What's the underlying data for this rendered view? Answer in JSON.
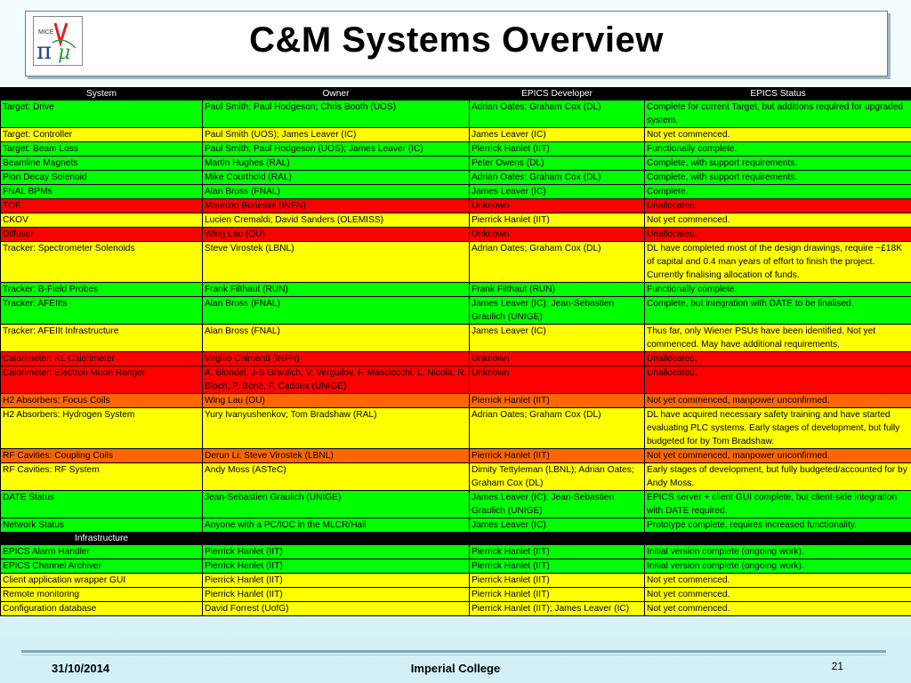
{
  "slide": {
    "title": "C&M Systems Overview",
    "logo_text": "MICE",
    "footer": {
      "date": "31/10/2014",
      "institution": "Imperial College",
      "page": "21"
    }
  },
  "colors": {
    "complete": "#00ff00",
    "partial": "#ffff00",
    "unallocated": "#ff0000",
    "unconfirmed": "#ff6600"
  },
  "table": {
    "headers": [
      "System",
      "Owner",
      "EPICS Developer",
      "EPICS Status"
    ],
    "rows": [
      {
        "status": "g",
        "cells": [
          "Target: Drive",
          "Paul Smith; Paul Hodgeson; Chris Booth (UOS)",
          "Adrian Oates; Graham Cox (DL)",
          "Complete for current Target, but additions required for upgraded system."
        ]
      },
      {
        "status": "y",
        "cells": [
          "Target: Controller",
          "Paul Smith (UOS); James Leaver (IC)",
          "James Leaver (IC)",
          "Not yet commenced."
        ]
      },
      {
        "status": "g",
        "cells": [
          "Target: Beam Loss",
          "Paul Smith; Paul Hodgeson (UOS); James Leaver (IC)",
          "Pierrick Hanlet (IIT)",
          "Functionally complete."
        ]
      },
      {
        "status": "g",
        "cells": [
          "Beamline Magnets",
          "Martin Hughes (RAL)",
          "Peter Owens (DL)",
          "Complete, with support requirements."
        ]
      },
      {
        "status": "g",
        "cells": [
          "Pion Decay Solenoid",
          "Mike Courthold (RAL)",
          "Adrian Oates; Graham Cox (DL)",
          "Complete, with support requirements."
        ]
      },
      {
        "status": "g",
        "cells": [
          "FNAL BPMs",
          "Alan Bross (FNAL)",
          "James Leaver (IC)",
          "Complete."
        ]
      },
      {
        "status": "r",
        "cells": [
          "TOF",
          "Maurizio Bonesini (INFN)",
          "Unknown",
          "Unallocated."
        ]
      },
      {
        "status": "y",
        "cells": [
          "CKOV",
          "Lucien Cremaldi; David Sanders (OLEMISS)",
          "Pierrick Hanlet (IIT)",
          "Not yet commenced."
        ]
      },
      {
        "status": "r",
        "cells": [
          "Diffuser",
          "Wing Lau (OU)",
          "Unknown",
          "Unallocated."
        ]
      },
      {
        "status": "y",
        "cells": [
          "Tracker: Spectrometer Solenoids",
          "Steve Virostek (LBNL)",
          "Adrian Oates; Graham Cox (DL)",
          "DL have completed most of the design drawings, require ~£18K of capital and 0.4 man years of effort to finish the project. Currently finalising allocation of funds."
        ]
      },
      {
        "status": "g",
        "cells": [
          "Tracker: B-Field Probes",
          "Frank Filthaut (RUN)",
          "Frank Filthaut (RUN)",
          "Functionally complete."
        ]
      },
      {
        "status": "g",
        "cells": [
          "Tracker: AFEIIts",
          "Alan Bross (FNAL)",
          "James Leaver (IC); Jean-Sebastien Graulich (UNIGE)",
          "Complete, but integration with DATE to be finalised."
        ]
      },
      {
        "status": "y",
        "cells": [
          "Tracker: AFEIIt Infrastructure",
          "Alan Bross (FNAL)",
          "James Leaver (IC)",
          "Thus far, only Wiener PSUs have been identified. Not yet commenced. May have additional requirements."
        ]
      },
      {
        "status": "r",
        "cells": [
          "Calorimeter: KL Calorimeter",
          "Virgilio Chimenti (INFN)",
          "Unknown",
          "Unallocated."
        ]
      },
      {
        "status": "r",
        "cells": [
          "Calorimeter: Electron Muon Ranger",
          "A. Blondel, J-S Graulich, V. Verguilov, F. Masciocchi, L. Nicola, R. Bloch, P. Béné, F. Cadoux (UNIGE)",
          "Unknown",
          "Unallocated."
        ]
      },
      {
        "status": "o",
        "cells": [
          "H2 Absorbers: Focus Coils",
          "Wing Lau (OU)",
          "Pierrick Hanlet (IIT)",
          "Not yet commenced, manpower unconfirmed."
        ]
      },
      {
        "status": "y",
        "cells": [
          "H2 Absorbers: Hydrogen System",
          "Yury Ivanyushenkov; Tom Bradshaw (RAL)",
          "Adrian Oates; Graham Cox (DL)",
          "DL have acquired necessary safety training and have started evaluating PLC systems. Early stages of development, but fully budgeted for by Tom Bradshaw."
        ]
      },
      {
        "status": "o",
        "cells": [
          "RF Cavities: Coupling Coils",
          "Derun Li; Steve Virostek (LBNL)",
          "Pierrick Hanlet (IIT)",
          "Not yet commenced, manpower unconfirmed."
        ]
      },
      {
        "status": "y",
        "cells": [
          "RF Cavities: RF System",
          "Andy Moss (ASTeC)",
          "Dimity Tettyleman (LBNL); Adrian Oates; Graham Cox (DL)",
          "Early stages of development, but fully budgeted/accounted for by Andy Moss."
        ]
      },
      {
        "status": "g",
        "cells": [
          "DATE Status",
          "Jean-Sebastien Graulich (UNIGE)",
          "James Leaver (IC); Jean-Sebastien Graulich (UNIGE)",
          "EPICS server + client GUI complete, but client-side integration with DATE required."
        ]
      },
      {
        "status": "g",
        "cells": [
          "Network Status",
          "Anyone with a PC/IOC in the MLCR/Hall",
          "James Leaver (IC)",
          "Prototype complete, requires increased functionality."
        ]
      }
    ],
    "section_label": "Infrastructure",
    "infra_rows": [
      {
        "status": "g",
        "cells": [
          "EPICS Alarm Handler",
          "Pierrick Hanlet (IIT)",
          "Pierrick Hanlet (IIT)",
          "Initial version complete (ongoing work)."
        ]
      },
      {
        "status": "g",
        "cells": [
          "EPICS Channel Archiver",
          "Pierrick Hanlet (IIT)",
          "Pierrick Hanlet (IIT)",
          "Initial version complete (ongoing work)."
        ]
      },
      {
        "status": "y",
        "cells": [
          "Client application wrapper GUI",
          "Pierrick Hanlet (IIT)",
          "Pierrick Hanlet (IIT)",
          "Not yet commenced."
        ]
      },
      {
        "status": "y",
        "cells": [
          "Remote monitoring",
          "Pierrick Hanlet (IIT)",
          "Pierrick Hanlet (IIT)",
          "Not yet commenced."
        ]
      },
      {
        "status": "y",
        "cells": [
          "Configuration database",
          "David Forrest (UofG)",
          "Pierrick Hanlet (IIT); James Leaver (IC)",
          "Not yet commenced."
        ]
      }
    ]
  }
}
